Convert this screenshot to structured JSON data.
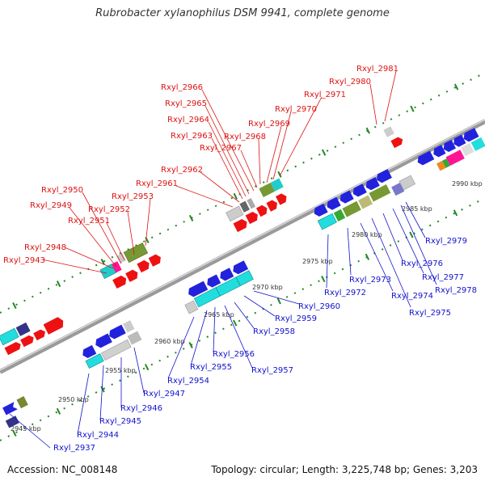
{
  "title": "Rubrobacter xylanophilus DSM 9941, complete genome",
  "footer": {
    "accession": "Accession: NC_008148",
    "summary": "Topology: circular; Length: 3,225,748 bp; Genes: 3,203"
  },
  "colors": {
    "upper_label": "#dd1111",
    "lower_label": "#1111cc",
    "backbone": "#999999",
    "dotted_track": "#228822"
  },
  "scale_labels": [
    "2945 kbp",
    "2950 kbp",
    "2955 kbp",
    "2960 kbp",
    "2965 kbp",
    "2970 kbp",
    "2975 kbp",
    "2980 kbp",
    "2985 kbp",
    "2990 kbp"
  ],
  "upper_genes": [
    "Rxyl_2943",
    "Rxyl_2948",
    "Rxyl_2949",
    "Rxyl_2950",
    "Rxyl_2951",
    "Rxyl_2952",
    "Rxyl_2953",
    "Rxyl_2961",
    "Rxyl_2962",
    "Rxyl_2963",
    "Rxyl_2964",
    "Rxyl_2965",
    "Rxyl_2966",
    "Rxyl_2967",
    "Rxyl_2968",
    "Rxyl_2969",
    "Rxyl_2970",
    "Rxyl_2971",
    "Rxyl_2980",
    "Rxyl_2981"
  ],
  "lower_genes": [
    "Rxyl_2937",
    "Rxyl_2944",
    "Rxyl_2945",
    "Rxyl_2946",
    "Rxyl_2947",
    "Rxyl_2954",
    "Rxyl_2955",
    "Rxyl_2956",
    "Rxyl_2957",
    "Rxyl_2958",
    "Rxyl_2959",
    "Rxyl_2960",
    "Rxyl_2972",
    "Rxyl_2973",
    "Rxyl_2974",
    "Rxyl_2975",
    "Rxyl_2976",
    "Rxyl_2977",
    "Rxyl_2978",
    "Rxyl_2979"
  ]
}
